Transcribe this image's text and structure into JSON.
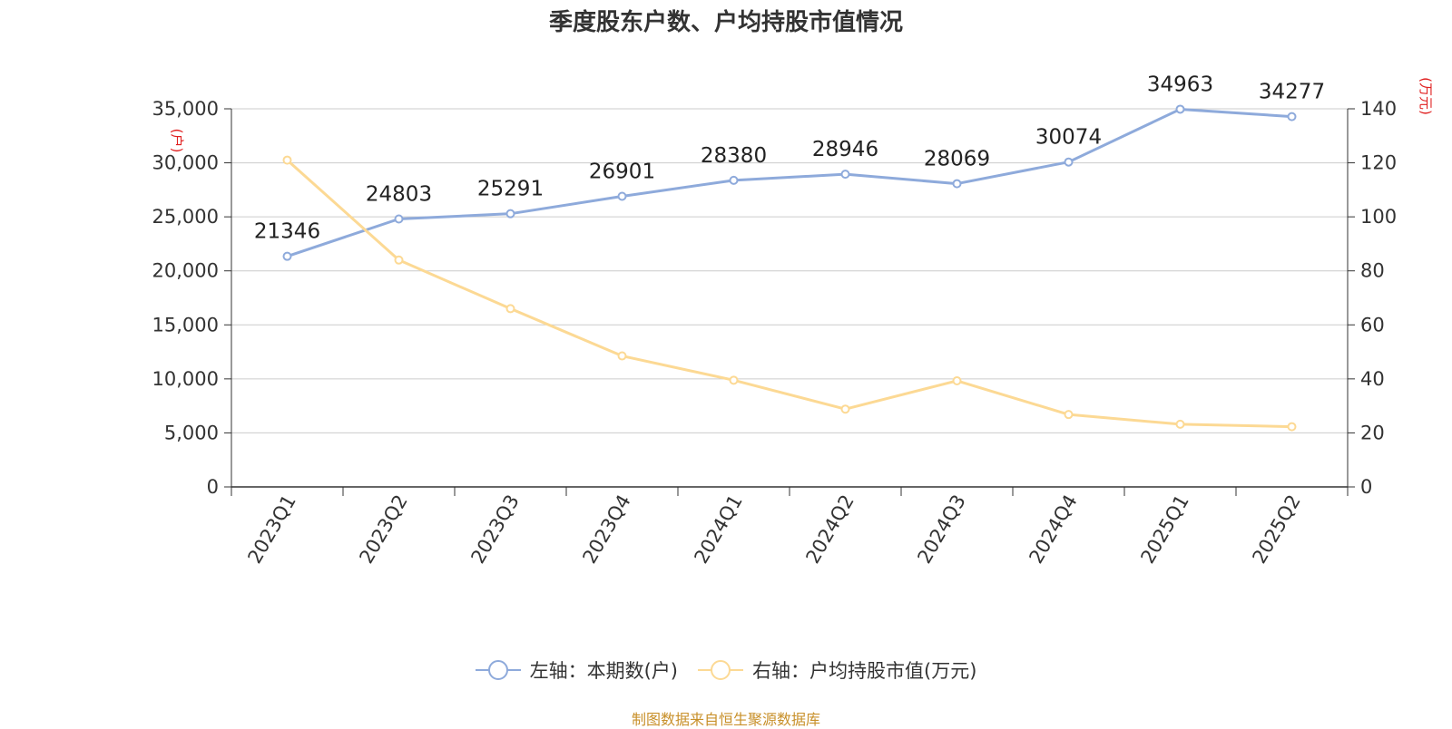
{
  "title": "季度股东户数、户均持股市值情况",
  "chart_data": {
    "type": "line",
    "categories": [
      "2023Q1",
      "2023Q2",
      "2023Q3",
      "2023Q4",
      "2024Q1",
      "2024Q2",
      "2024Q3",
      "2024Q4",
      "2025Q1",
      "2025Q2"
    ],
    "y_left": {
      "label": "(户)",
      "min": 0,
      "max": 35000,
      "step": 5000,
      "ticks": [
        "0",
        "5,000",
        "10,000",
        "15,000",
        "20,000",
        "25,000",
        "30,000",
        "35,000"
      ]
    },
    "y_right": {
      "label": "(万元)",
      "min": 0,
      "max": 140,
      "step": 20,
      "ticks": [
        "0",
        "20",
        "40",
        "60",
        "80",
        "100",
        "120",
        "140"
      ]
    },
    "grid": true,
    "legend_position": "bottom",
    "series": [
      {
        "name": "左轴：本期数(户)",
        "axis": "left",
        "color": "#8eaadb",
        "values": [
          21346,
          24803,
          25291,
          26901,
          28380,
          28946,
          28069,
          30074,
          34963,
          34277
        ],
        "show_labels": true
      },
      {
        "name": "右轴：户均持股市值(万元)",
        "axis": "right",
        "color": "#fcd994",
        "values": [
          121,
          84,
          66,
          48.5,
          39.5,
          28.8,
          39.3,
          26.8,
          23.2,
          22.3
        ],
        "show_labels": false
      }
    ]
  },
  "legend": {
    "left_label": "左轴：本期数(户)",
    "right_label": "右轴：户均持股市值(万元)"
  },
  "source": "制图数据来自恒生聚源数据库"
}
